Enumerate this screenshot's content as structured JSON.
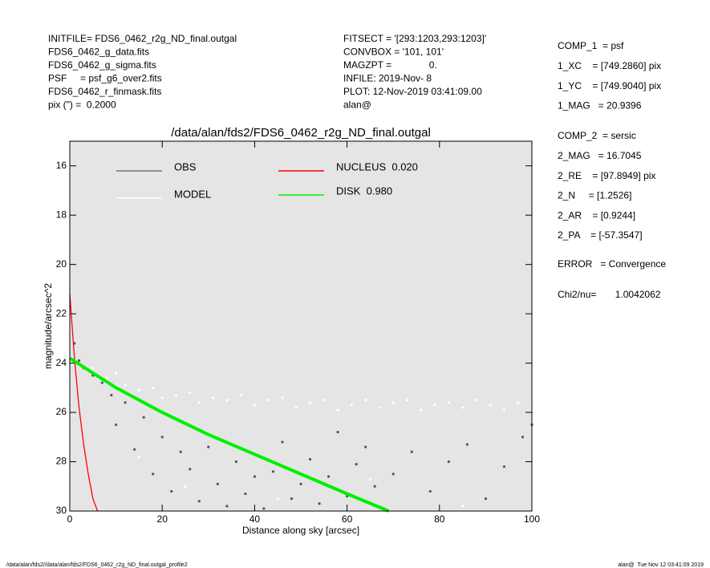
{
  "header": {
    "left": [
      "INITFILE= FDS6_0462_r2g_ND_final.outgal",
      "FDS6_0462_g_data.fits",
      "FDS6_0462_g_sigma.fits",
      "PSF     = psf_g6_over2.fits",
      "FDS6_0462_r_finmask.fits",
      "pix (\") =  0.2000"
    ],
    "middle": [
      "FITSECT = '[293:1203,293:1203]'",
      "CONVBOX = '101, 101'",
      "MAGZPT =              0.",
      "INFILE: 2019-Nov- 8",
      "PLOT: 12-Nov-2019 03:41:09.00",
      "alan@"
    ],
    "right": [
      [
        "COMP_1  = psf",
        "1_XC    = [749.2860] pix",
        "1_YC    = [749.9040] pix",
        "1_MAG   = 20.9396"
      ],
      [
        "COMP_2  = sersic",
        "2_MAG   = 16.7045",
        "2_RE    = [97.8949] pix",
        "2_N     = [1.2526]",
        "2_AR    = [0.9244]",
        "2_PA    = [-57.3547]"
      ],
      [
        "ERROR   = Convergence"
      ],
      [
        "Chi2/nu=       1.0042062"
      ]
    ]
  },
  "footer": {
    "left": "/data/alan/fds2//data/alan/fds2/FDS6_0462_r2g_ND_final.outgal_profile2",
    "right": "alan@  Tue Nov 12 03:41:09 2019"
  },
  "chart_data": {
    "type": "scatter",
    "title": "/data/alan/fds2/FDS6_0462_r2g_ND_final.outgal",
    "x_label": "Distance along sky [arcsec]",
    "y_label": "magnitude/arcsec^2",
    "xlim": [
      0,
      100
    ],
    "xticks": [
      0,
      20,
      40,
      60,
      80,
      100
    ],
    "ylim": [
      30,
      15
    ],
    "yticks": [
      16,
      18,
      20,
      22,
      24,
      26,
      28,
      30
    ],
    "background": "#e5e5e5",
    "series": [
      {
        "name": "OBS",
        "color": "#555555",
        "mode": "points",
        "x": [
          1,
          2,
          3,
          5,
          7,
          9,
          10,
          12,
          14,
          16,
          18,
          20,
          22,
          24,
          26,
          28,
          30,
          32,
          34,
          36,
          38,
          40,
          42,
          44,
          46,
          48,
          50,
          52,
          54,
          56,
          58,
          60,
          62,
          64,
          66,
          70,
          74,
          78,
          82,
          86,
          90,
          94,
          98,
          100
        ],
        "values": [
          23.2,
          23.9,
          24.2,
          24.5,
          24.8,
          25.3,
          26.5,
          25.6,
          27.5,
          26.2,
          28.5,
          27.0,
          29.2,
          27.6,
          28.3,
          29.6,
          27.4,
          28.9,
          29.8,
          28.0,
          29.3,
          28.6,
          29.9,
          28.4,
          27.2,
          29.5,
          28.9,
          27.9,
          29.7,
          28.6,
          26.8,
          29.4,
          28.1,
          27.4,
          29.0,
          28.5,
          27.6,
          29.2,
          28.0,
          27.3,
          29.5,
          28.2,
          27.0,
          26.5
        ]
      },
      {
        "name": "MODEL",
        "color": "#ffffff",
        "mode": "points",
        "x": [
          5,
          8,
          10,
          12,
          15,
          18,
          20,
          23,
          26,
          28,
          31,
          34,
          37,
          40,
          43,
          46,
          49,
          52,
          55,
          58,
          61,
          64,
          67,
          70,
          73,
          76,
          79,
          82,
          85,
          88,
          91,
          94,
          97,
          100,
          15,
          25,
          45,
          65,
          85
        ],
        "values": [
          24.2,
          24.6,
          24.4,
          24.9,
          25.1,
          25.0,
          25.4,
          25.3,
          25.2,
          25.6,
          25.4,
          25.5,
          25.3,
          25.7,
          25.5,
          25.4,
          25.8,
          25.6,
          25.5,
          25.9,
          25.7,
          25.5,
          25.8,
          25.6,
          25.5,
          25.9,
          25.7,
          25.6,
          25.8,
          25.5,
          25.7,
          25.9,
          25.6,
          25.8,
          27.8,
          29.0,
          29.5,
          28.7,
          29.8
        ]
      },
      {
        "name": "NUCLEUS  0.020",
        "color": "#ff0000",
        "mode": "line",
        "x": [
          0,
          0.5,
          1,
          2,
          3,
          4,
          5,
          6
        ],
        "values": [
          21.2,
          22.5,
          23.8,
          25.8,
          27.3,
          28.5,
          29.5,
          30
        ]
      },
      {
        "name": "DISK  0.980",
        "color": "#00ee00",
        "mode": "band",
        "x": [
          0,
          10,
          20,
          30,
          40,
          50,
          60,
          69
        ],
        "values": [
          23.8,
          25.0,
          26.0,
          26.9,
          27.7,
          28.5,
          29.3,
          30
        ]
      }
    ]
  }
}
